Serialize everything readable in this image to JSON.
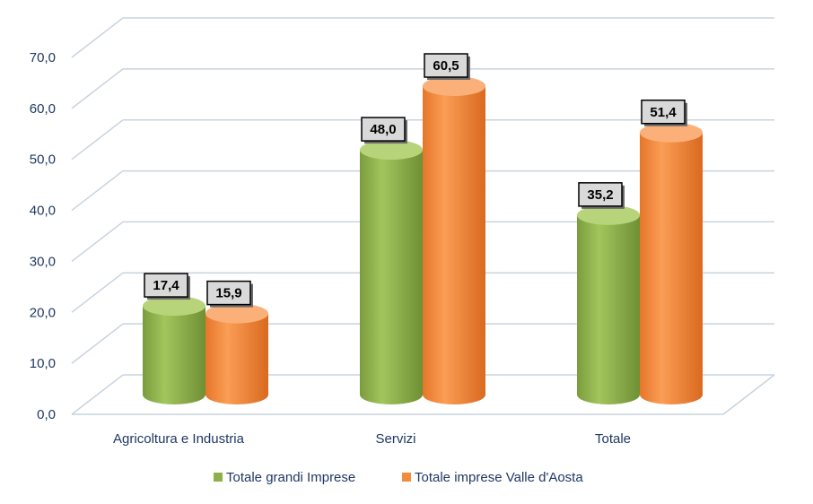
{
  "chart_data": {
    "type": "bar",
    "categories": [
      "Agricoltura e Industria",
      "Servizi",
      "Totale"
    ],
    "series": [
      {
        "name": "Totale grandi Imprese",
        "values": [
          17.4,
          48.0,
          35.2
        ],
        "labels": [
          "17,4",
          "48,0",
          "35,2"
        ],
        "color": "#8db04a"
      },
      {
        "name": "Totale imprese Valle d'Aosta",
        "values": [
          15.9,
          60.5,
          51.4
        ],
        "labels": [
          "15,9",
          "60,5",
          "51,4"
        ],
        "color": "#f28b3c"
      }
    ],
    "y_ticks": [
      "0,0",
      "10,0",
      "20,0",
      "30,0",
      "40,0",
      "50,0",
      "60,0",
      "70,0"
    ],
    "ylim": [
      0,
      70
    ],
    "grid": true,
    "legend_position": "bottom",
    "style": "3d-cylinder"
  }
}
